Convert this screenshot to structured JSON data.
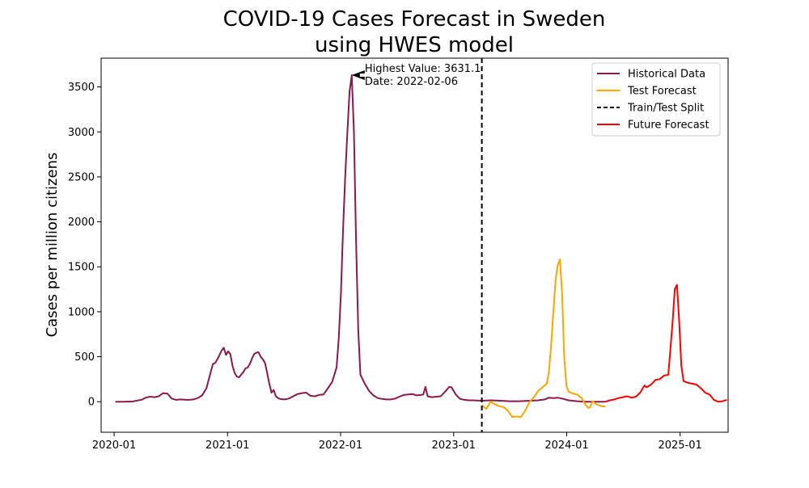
{
  "chart_data": {
    "type": "line",
    "title_line1": "COVID-19 Cases Forecast in Sweden",
    "title_line2": "using HWES model",
    "xlabel": "",
    "ylabel": "Cases per million citizens",
    "xlim": [
      "2019-11-20",
      "2025-06-05"
    ],
    "ylim": [
      -340,
      3820
    ],
    "x_ticks": [
      "2020-01",
      "2021-01",
      "2022-01",
      "2023-01",
      "2024-01",
      "2025-01"
    ],
    "y_ticks": [
      0,
      500,
      1000,
      1500,
      2000,
      2500,
      3000,
      3500
    ],
    "grid": false,
    "legend_position": "top-right",
    "split_date": "2023-04-02",
    "annotation": {
      "line1": "Highest Value: 3631.1",
      "line2": "Date: 2022-02-06",
      "point_x": "2022-02-06",
      "point_y": 3631.1,
      "text_x": "2022-03-20"
    },
    "series": [
      {
        "name": "Historical Data",
        "color": "#8b1a4a",
        "style": "solid",
        "points": [
          [
            "2020-01-05",
            0
          ],
          [
            "2020-02-02",
            0
          ],
          [
            "2020-03-01",
            2
          ],
          [
            "2020-03-15",
            12
          ],
          [
            "2020-03-29",
            20
          ],
          [
            "2020-04-12",
            45
          ],
          [
            "2020-04-26",
            55
          ],
          [
            "2020-05-10",
            50
          ],
          [
            "2020-05-24",
            60
          ],
          [
            "2020-06-07",
            95
          ],
          [
            "2020-06-21",
            90
          ],
          [
            "2020-07-05",
            35
          ],
          [
            "2020-07-19",
            20
          ],
          [
            "2020-08-02",
            25
          ],
          [
            "2020-08-16",
            22
          ],
          [
            "2020-08-30",
            20
          ],
          [
            "2020-09-13",
            25
          ],
          [
            "2020-09-27",
            40
          ],
          [
            "2020-10-11",
            70
          ],
          [
            "2020-10-25",
            150
          ],
          [
            "2020-11-08",
            330
          ],
          [
            "2020-11-15",
            420
          ],
          [
            "2020-11-22",
            430
          ],
          [
            "2020-11-29",
            470
          ],
          [
            "2020-12-06",
            520
          ],
          [
            "2020-12-13",
            570
          ],
          [
            "2020-12-20",
            600
          ],
          [
            "2020-12-27",
            520
          ],
          [
            "2021-01-03",
            560
          ],
          [
            "2021-01-10",
            530
          ],
          [
            "2021-01-17",
            400
          ],
          [
            "2021-01-24",
            320
          ],
          [
            "2021-01-31",
            280
          ],
          [
            "2021-02-07",
            270
          ],
          [
            "2021-02-14",
            300
          ],
          [
            "2021-02-21",
            330
          ],
          [
            "2021-02-28",
            370
          ],
          [
            "2021-03-07",
            380
          ],
          [
            "2021-03-14",
            420
          ],
          [
            "2021-03-21",
            480
          ],
          [
            "2021-03-28",
            530
          ],
          [
            "2021-04-04",
            545
          ],
          [
            "2021-04-11",
            550
          ],
          [
            "2021-04-18",
            500
          ],
          [
            "2021-04-25",
            470
          ],
          [
            "2021-05-02",
            430
          ],
          [
            "2021-05-09",
            320
          ],
          [
            "2021-05-16",
            200
          ],
          [
            "2021-05-23",
            100
          ],
          [
            "2021-05-30",
            130
          ],
          [
            "2021-06-06",
            60
          ],
          [
            "2021-06-13",
            40
          ],
          [
            "2021-06-20",
            30
          ],
          [
            "2021-07-04",
            25
          ],
          [
            "2021-07-18",
            35
          ],
          [
            "2021-08-01",
            60
          ],
          [
            "2021-08-15",
            85
          ],
          [
            "2021-08-29",
            95
          ],
          [
            "2021-09-12",
            100
          ],
          [
            "2021-09-26",
            65
          ],
          [
            "2021-10-10",
            60
          ],
          [
            "2021-10-24",
            75
          ],
          [
            "2021-11-07",
            80
          ],
          [
            "2021-11-21",
            150
          ],
          [
            "2021-12-05",
            220
          ],
          [
            "2021-12-19",
            380
          ],
          [
            "2021-12-26",
            700
          ],
          [
            "2022-01-02",
            1200
          ],
          [
            "2022-01-09",
            1900
          ],
          [
            "2022-01-16",
            2500
          ],
          [
            "2022-01-23",
            3000
          ],
          [
            "2022-01-30",
            3450
          ],
          [
            "2022-02-06",
            3631.1
          ],
          [
            "2022-02-13",
            3000
          ],
          [
            "2022-02-20",
            1800
          ],
          [
            "2022-02-27",
            800
          ],
          [
            "2022-03-06",
            300
          ],
          [
            "2022-03-20",
            200
          ],
          [
            "2022-04-03",
            120
          ],
          [
            "2022-04-17",
            70
          ],
          [
            "2022-05-01",
            40
          ],
          [
            "2022-05-15",
            30
          ],
          [
            "2022-05-29",
            25
          ],
          [
            "2022-06-12",
            25
          ],
          [
            "2022-06-26",
            35
          ],
          [
            "2022-07-10",
            55
          ],
          [
            "2022-07-24",
            75
          ],
          [
            "2022-08-07",
            80
          ],
          [
            "2022-08-21",
            85
          ],
          [
            "2022-09-04",
            70
          ],
          [
            "2022-09-18",
            75
          ],
          [
            "2022-09-25",
            80
          ],
          [
            "2022-10-02",
            165
          ],
          [
            "2022-10-09",
            60
          ],
          [
            "2022-10-23",
            50
          ],
          [
            "2022-11-06",
            55
          ],
          [
            "2022-11-20",
            60
          ],
          [
            "2022-12-04",
            110
          ],
          [
            "2022-12-18",
            165
          ],
          [
            "2022-12-25",
            160
          ],
          [
            "2023-01-08",
            80
          ],
          [
            "2023-01-22",
            30
          ],
          [
            "2023-02-05",
            20
          ],
          [
            "2023-02-19",
            15
          ],
          [
            "2023-03-05",
            15
          ],
          [
            "2023-03-19",
            12
          ],
          [
            "2023-04-02",
            10
          ],
          [
            "2023-05-01",
            15
          ],
          [
            "2023-06-01",
            10
          ],
          [
            "2023-07-01",
            5
          ],
          [
            "2023-08-01",
            5
          ],
          [
            "2023-09-01",
            10
          ],
          [
            "2023-10-01",
            15
          ],
          [
            "2023-10-22",
            25
          ],
          [
            "2023-11-05",
            45
          ],
          [
            "2023-11-19",
            40
          ],
          [
            "2023-12-03",
            45
          ],
          [
            "2023-12-17",
            35
          ],
          [
            "2024-01-07",
            15
          ],
          [
            "2024-02-04",
            5
          ],
          [
            "2024-03-03",
            0
          ],
          [
            "2024-04-07",
            0
          ],
          [
            "2024-05-05",
            0
          ]
        ]
      },
      {
        "name": "Test Forecast",
        "color": "#ffa500",
        "style": "solid",
        "points": [
          [
            "2023-04-02",
            -40
          ],
          [
            "2023-04-16",
            -80
          ],
          [
            "2023-04-30",
            0
          ],
          [
            "2023-05-14",
            -30
          ],
          [
            "2023-05-28",
            -50
          ],
          [
            "2023-06-11",
            -60
          ],
          [
            "2023-06-25",
            -100
          ],
          [
            "2023-07-09",
            -170
          ],
          [
            "2023-07-23",
            -165
          ],
          [
            "2023-08-06",
            -170
          ],
          [
            "2023-08-20",
            -100
          ],
          [
            "2023-09-03",
            0
          ],
          [
            "2023-09-17",
            50
          ],
          [
            "2023-10-01",
            120
          ],
          [
            "2023-10-15",
            160
          ],
          [
            "2023-10-29",
            200
          ],
          [
            "2023-11-05",
            350
          ],
          [
            "2023-11-12",
            650
          ],
          [
            "2023-11-19",
            1000
          ],
          [
            "2023-11-26",
            1350
          ],
          [
            "2023-12-03",
            1520
          ],
          [
            "2023-12-10",
            1580
          ],
          [
            "2023-12-17",
            1200
          ],
          [
            "2023-12-24",
            500
          ],
          [
            "2023-12-31",
            180
          ],
          [
            "2024-01-07",
            110
          ],
          [
            "2024-01-21",
            90
          ],
          [
            "2024-02-04",
            80
          ],
          [
            "2024-02-18",
            40
          ],
          [
            "2024-03-03",
            -40
          ],
          [
            "2024-03-10",
            -70
          ],
          [
            "2024-03-17",
            -60
          ],
          [
            "2024-03-24",
            5
          ],
          [
            "2024-04-07",
            -30
          ],
          [
            "2024-04-21",
            -50
          ],
          [
            "2024-05-05",
            -55
          ]
        ]
      },
      {
        "name": "Train/Test Split",
        "color": "#000000",
        "style": "dashed",
        "points": []
      },
      {
        "name": "Future Forecast",
        "color": "#ff0000",
        "style": "solid",
        "points": [
          [
            "2024-05-05",
            0
          ],
          [
            "2024-05-19",
            15
          ],
          [
            "2024-06-02",
            25
          ],
          [
            "2024-06-16",
            40
          ],
          [
            "2024-06-30",
            50
          ],
          [
            "2024-07-14",
            60
          ],
          [
            "2024-07-28",
            45
          ],
          [
            "2024-08-11",
            55
          ],
          [
            "2024-08-25",
            100
          ],
          [
            "2024-09-08",
            180
          ],
          [
            "2024-09-15",
            160
          ],
          [
            "2024-09-29",
            190
          ],
          [
            "2024-10-13",
            240
          ],
          [
            "2024-10-27",
            250
          ],
          [
            "2024-11-10",
            290
          ],
          [
            "2024-11-24",
            300
          ],
          [
            "2024-12-01",
            600
          ],
          [
            "2024-12-08",
            900
          ],
          [
            "2024-12-15",
            1250
          ],
          [
            "2024-12-22",
            1300
          ],
          [
            "2024-12-29",
            900
          ],
          [
            "2025-01-05",
            400
          ],
          [
            "2025-01-12",
            230
          ],
          [
            "2025-01-26",
            210
          ],
          [
            "2025-02-09",
            200
          ],
          [
            "2025-02-23",
            190
          ],
          [
            "2025-03-09",
            150
          ],
          [
            "2025-03-23",
            100
          ],
          [
            "2025-04-06",
            80
          ],
          [
            "2025-04-20",
            20
          ],
          [
            "2025-05-04",
            0
          ],
          [
            "2025-05-18",
            5
          ],
          [
            "2025-06-01",
            20
          ]
        ]
      }
    ]
  }
}
